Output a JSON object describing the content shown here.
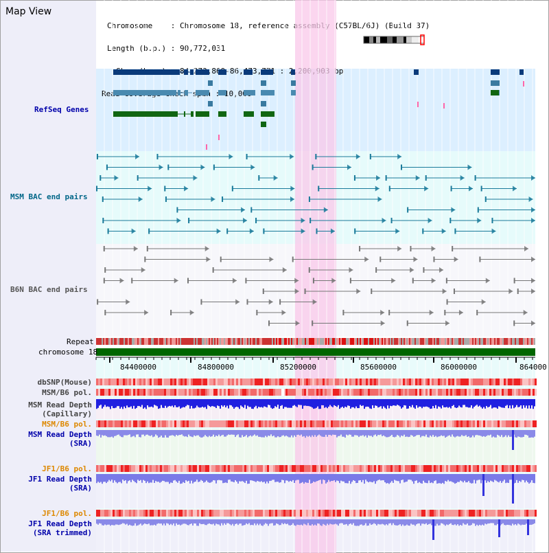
{
  "title": "Map View",
  "info": {
    "chromosome_key": "Chromosome",
    "chromosome_val": "Chromosome 18, reference assembly (C57BL/6J) (Build 37)",
    "length_key": "Length (b.p.)",
    "length_val": "90,772,031",
    "show_key": "Show (b.p.)",
    "show_val": "84,272,869-86,473,771 : 2,200,903 bp",
    "span_key": "Read coverage check span",
    "span_val": "10,000"
  },
  "tracks": {
    "refseq": "RefSeq Genes",
    "msm_bac": "MSM BAC end pairs",
    "b6n_bac": "B6N BAC end pairs",
    "repeat": "Repeat",
    "chromosome": "chromosome 18",
    "dbsnp": "dbSNP(Mouse)",
    "msm_b6_pol_1": "MSM/B6 pol.",
    "msm_read_cap_1": "MSM Read Depth",
    "msm_read_cap_2": "(Capillary)",
    "msm_b6_pol_2": "MSM/B6 pol.",
    "msm_read_sra_1": "MSM Read Depth",
    "msm_read_sra_2": "(SRA)",
    "jf1_b6_pol_1": "JF1/B6 pol.",
    "jf1_read_sra_1": "JF1 Read Depth",
    "jf1_read_sra_2": "(SRA)",
    "jf1_b6_pol_2": "JF1/B6 pol.",
    "jf1_read_trim_1": "JF1 Read Depth",
    "jf1_read_trim_2": "(SRA trimmed)"
  },
  "axis_ticks": [
    "84400000",
    "84800000",
    "85200000",
    "85600000",
    "86000000",
    "864000"
  ],
  "colors": {
    "refseq_label": "#0000aa",
    "msm_label": "#006688",
    "b6n_label": "#444444",
    "pol_orange": "#dd8800",
    "read_blue": "#0000aa",
    "chrom_green": "#006600",
    "highlight": "#f9c8ea"
  }
}
